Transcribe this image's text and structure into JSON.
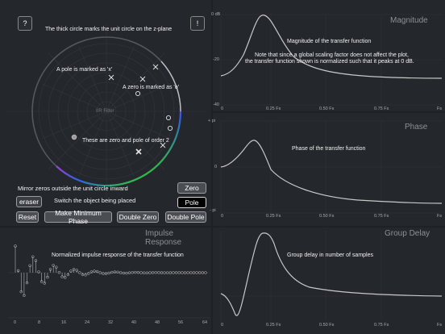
{
  "zplane": {
    "help_icon": "?",
    "info_icon": "!",
    "center_label": "IIR Filter",
    "notes": {
      "unit_circle": "The thick circle marks the unit circle on the z-plane",
      "pole": "A pole is marked as 'x'",
      "zero": "A zero is marked as 'o'",
      "order2": "These are zero and pole of order 2"
    }
  },
  "controls": {
    "mirror_note": "Mirror zeros outside the unit circle inward",
    "switch_note": "Switch the object being placed",
    "eraser": "eraser",
    "zero": "Zero",
    "pole": "Pole",
    "reset": "Reset",
    "min_phase": "Make Minimum Phase",
    "double_zero": "Double Zero",
    "double_pole": "Double Pole"
  },
  "magnitude": {
    "title": "Magnitude",
    "note_title": "Magnitude of the transfer function",
    "note_1": "Note that since a global scaling factor does not affect the plot,",
    "note_2": "the transfer function shown is normalized such that it peaks at 0 dB.",
    "yticks": [
      "0 dB",
      "-20",
      "-40"
    ],
    "xticks": [
      "0",
      "0.25 Fs",
      "0.50 Fs",
      "0.75 Fs",
      "Fs"
    ]
  },
  "phase": {
    "title": "Phase",
    "note": "Phase of the transfer function",
    "yticks": [
      "+ pi",
      "0",
      "- pi"
    ],
    "xticks": [
      "0",
      "0.25 Fs",
      "0.50 Fs",
      "0.75 Fs",
      "Fs"
    ]
  },
  "impulse": {
    "title": "Impulse Response",
    "note": "Normalized impulse response of the transfer function",
    "xticks": [
      "0",
      "8",
      "16",
      "24",
      "32",
      "40",
      "48",
      "56",
      "64"
    ]
  },
  "group_delay": {
    "title": "Group Delay",
    "note": "Group delay in number of samples",
    "xticks": [
      "0",
      "0.25 Fs",
      "0.50 Fs",
      "0.75 Fs",
      "Fs"
    ]
  },
  "colors": {
    "background": "#1e2125",
    "panel": "#24272c",
    "curve": "#c8c8c8"
  }
}
